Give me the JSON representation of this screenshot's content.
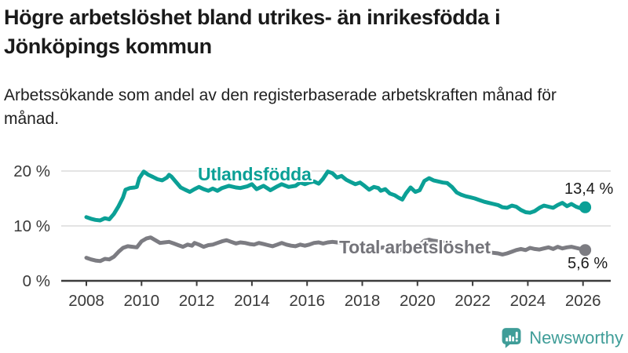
{
  "header": {
    "title": "Högre arbetslöshet bland utrikes- än inrikesfödda i Jönköpings kommun",
    "subtitle": "Arbetssökande som andel av den registerbaserade arbetskraften månad för månad."
  },
  "chart_data": {
    "type": "line",
    "title": "Högre arbetslöshet bland utrikes- än inrikesfödda i Jönköpings kommun",
    "subtitle": "Arbetssökande som andel av den registerbaserade arbetskraften månad för månad.",
    "xlabel": "",
    "ylabel": "",
    "grid": "horizontal",
    "legend_position": "inline-on-lines",
    "xlim": [
      2007.1,
      2027.0
    ],
    "ylim": [
      0,
      21.5
    ],
    "x_ticks": [
      {
        "value": 2008,
        "label": "2008"
      },
      {
        "value": 2010,
        "label": "2010"
      },
      {
        "value": 2012,
        "label": "2012"
      },
      {
        "value": 2014,
        "label": "2014"
      },
      {
        "value": 2016,
        "label": "2016"
      },
      {
        "value": 2018,
        "label": "2018"
      },
      {
        "value": 2020,
        "label": "2020"
      },
      {
        "value": 2022,
        "label": "2022"
      },
      {
        "value": 2024,
        "label": "2024"
      },
      {
        "value": 2026,
        "label": "2026"
      }
    ],
    "y_ticks": [
      {
        "value": 0,
        "label": "0 %"
      },
      {
        "value": 10,
        "label": "10 %"
      },
      {
        "value": 20,
        "label": "20 %"
      }
    ],
    "series": [
      {
        "name": "Utlandsfödda",
        "color": "#0ba096",
        "end_label": "13,4 %",
        "end_value": 13.4,
        "points": [
          [
            2008.0,
            11.6
          ],
          [
            2008.17,
            11.3
          ],
          [
            2008.33,
            11.1
          ],
          [
            2008.5,
            11.0
          ],
          [
            2008.67,
            11.4
          ],
          [
            2008.83,
            11.2
          ],
          [
            2009.0,
            12.2
          ],
          [
            2009.17,
            13.6
          ],
          [
            2009.33,
            15.2
          ],
          [
            2009.42,
            16.6
          ],
          [
            2009.58,
            16.9
          ],
          [
            2009.75,
            17.0
          ],
          [
            2009.83,
            17.1
          ],
          [
            2009.92,
            18.7
          ],
          [
            2010.08,
            19.9
          ],
          [
            2010.25,
            19.3
          ],
          [
            2010.42,
            18.9
          ],
          [
            2010.58,
            18.5
          ],
          [
            2010.75,
            18.3
          ],
          [
            2010.92,
            18.8
          ],
          [
            2011.0,
            19.3
          ],
          [
            2011.08,
            19.0
          ],
          [
            2011.25,
            18.0
          ],
          [
            2011.42,
            17.0
          ],
          [
            2011.58,
            16.6
          ],
          [
            2011.75,
            16.2
          ],
          [
            2011.92,
            16.7
          ],
          [
            2012.08,
            17.1
          ],
          [
            2012.25,
            16.7
          ],
          [
            2012.42,
            16.4
          ],
          [
            2012.58,
            16.8
          ],
          [
            2012.75,
            16.4
          ],
          [
            2012.92,
            16.9
          ],
          [
            2013.17,
            17.3
          ],
          [
            2013.42,
            17.0
          ],
          [
            2013.58,
            16.9
          ],
          [
            2013.83,
            17.2
          ],
          [
            2014.0,
            17.6
          ],
          [
            2014.17,
            16.7
          ],
          [
            2014.42,
            17.3
          ],
          [
            2014.67,
            16.5
          ],
          [
            2014.92,
            17.2
          ],
          [
            2015.08,
            17.6
          ],
          [
            2015.33,
            17.1
          ],
          [
            2015.58,
            17.3
          ],
          [
            2015.75,
            17.9
          ],
          [
            2015.92,
            17.6
          ],
          [
            2016.08,
            17.9
          ],
          [
            2016.25,
            18.1
          ],
          [
            2016.42,
            17.7
          ],
          [
            2016.58,
            18.6
          ],
          [
            2016.75,
            19.9
          ],
          [
            2016.92,
            19.6
          ],
          [
            2017.08,
            18.8
          ],
          [
            2017.25,
            19.1
          ],
          [
            2017.42,
            18.4
          ],
          [
            2017.58,
            18.0
          ],
          [
            2017.75,
            17.6
          ],
          [
            2017.92,
            17.9
          ],
          [
            2018.08,
            17.3
          ],
          [
            2018.25,
            16.6
          ],
          [
            2018.42,
            17.1
          ],
          [
            2018.58,
            16.9
          ],
          [
            2018.67,
            16.4
          ],
          [
            2018.83,
            16.7
          ],
          [
            2019.0,
            15.9
          ],
          [
            2019.17,
            15.6
          ],
          [
            2019.33,
            15.1
          ],
          [
            2019.45,
            14.8
          ],
          [
            2019.58,
            15.9
          ],
          [
            2019.75,
            17.0
          ],
          [
            2019.92,
            16.2
          ],
          [
            2020.08,
            16.5
          ],
          [
            2020.25,
            18.2
          ],
          [
            2020.42,
            18.7
          ],
          [
            2020.58,
            18.3
          ],
          [
            2020.75,
            18.1
          ],
          [
            2020.92,
            17.9
          ],
          [
            2021.08,
            17.8
          ],
          [
            2021.25,
            17.1
          ],
          [
            2021.42,
            16.1
          ],
          [
            2021.58,
            15.7
          ],
          [
            2021.75,
            15.4
          ],
          [
            2021.92,
            15.2
          ],
          [
            2022.08,
            15.0
          ],
          [
            2022.25,
            14.7
          ],
          [
            2022.42,
            14.4
          ],
          [
            2022.58,
            14.2
          ],
          [
            2022.75,
            14.0
          ],
          [
            2022.92,
            13.8
          ],
          [
            2023.08,
            13.4
          ],
          [
            2023.25,
            13.3
          ],
          [
            2023.42,
            13.7
          ],
          [
            2023.58,
            13.5
          ],
          [
            2023.75,
            12.9
          ],
          [
            2023.92,
            12.5
          ],
          [
            2024.08,
            12.4
          ],
          [
            2024.25,
            12.7
          ],
          [
            2024.42,
            13.3
          ],
          [
            2024.58,
            13.7
          ],
          [
            2024.75,
            13.5
          ],
          [
            2024.92,
            13.3
          ],
          [
            2025.08,
            13.8
          ],
          [
            2025.25,
            14.2
          ],
          [
            2025.42,
            13.6
          ],
          [
            2025.58,
            14.0
          ],
          [
            2025.75,
            13.5
          ],
          [
            2025.92,
            13.2
          ],
          [
            2026.08,
            13.4
          ]
        ]
      },
      {
        "name": "Total arbetslöshet",
        "color": "#7c7c82",
        "end_label": "5,6 %",
        "end_value": 5.6,
        "points": [
          [
            2008.0,
            4.2
          ],
          [
            2008.17,
            3.9
          ],
          [
            2008.33,
            3.7
          ],
          [
            2008.5,
            3.6
          ],
          [
            2008.67,
            4.0
          ],
          [
            2008.83,
            3.9
          ],
          [
            2009.0,
            4.4
          ],
          [
            2009.17,
            5.3
          ],
          [
            2009.33,
            6.0
          ],
          [
            2009.5,
            6.3
          ],
          [
            2009.67,
            6.2
          ],
          [
            2009.83,
            6.1
          ],
          [
            2010.0,
            7.2
          ],
          [
            2010.17,
            7.7
          ],
          [
            2010.33,
            7.9
          ],
          [
            2010.5,
            7.4
          ],
          [
            2010.67,
            6.9
          ],
          [
            2010.83,
            7.0
          ],
          [
            2011.0,
            7.1
          ],
          [
            2011.17,
            6.8
          ],
          [
            2011.33,
            6.5
          ],
          [
            2011.5,
            6.2
          ],
          [
            2011.67,
            6.6
          ],
          [
            2011.83,
            6.4
          ],
          [
            2011.92,
            6.9
          ],
          [
            2012.08,
            6.6
          ],
          [
            2012.25,
            6.2
          ],
          [
            2012.42,
            6.5
          ],
          [
            2012.58,
            6.6
          ],
          [
            2012.75,
            6.9
          ],
          [
            2012.92,
            7.2
          ],
          [
            2013.08,
            7.4
          ],
          [
            2013.25,
            7.1
          ],
          [
            2013.42,
            6.8
          ],
          [
            2013.58,
            7.0
          ],
          [
            2013.75,
            6.9
          ],
          [
            2013.92,
            6.7
          ],
          [
            2014.08,
            6.6
          ],
          [
            2014.25,
            6.9
          ],
          [
            2014.42,
            6.7
          ],
          [
            2014.58,
            6.5
          ],
          [
            2014.75,
            6.3
          ],
          [
            2014.92,
            6.6
          ],
          [
            2015.08,
            6.9
          ],
          [
            2015.25,
            6.6
          ],
          [
            2015.42,
            6.4
          ],
          [
            2015.58,
            6.3
          ],
          [
            2015.75,
            6.6
          ],
          [
            2015.92,
            6.4
          ],
          [
            2016.08,
            6.6
          ],
          [
            2016.25,
            6.9
          ],
          [
            2016.42,
            7.0
          ],
          [
            2016.58,
            6.8
          ],
          [
            2016.75,
            7.0
          ],
          [
            2016.92,
            7.1
          ],
          [
            2017.08,
            7.0
          ],
          [
            2017.25,
            6.9
          ],
          [
            2017.42,
            6.6
          ],
          [
            2017.58,
            6.8
          ],
          [
            2017.75,
            6.6
          ],
          [
            2017.92,
            6.5
          ],
          [
            2018.08,
            6.1
          ],
          [
            2018.25,
            6.3
          ],
          [
            2018.42,
            6.1
          ],
          [
            2018.58,
            5.9
          ],
          [
            2018.75,
            6.1
          ],
          [
            2018.92,
            6.0
          ],
          [
            2019.08,
            5.8
          ],
          [
            2019.25,
            5.5
          ],
          [
            2019.42,
            5.7
          ],
          [
            2019.58,
            5.9
          ],
          [
            2019.75,
            6.1
          ],
          [
            2019.92,
            6.2
          ],
          [
            2020.08,
            6.6
          ],
          [
            2020.25,
            7.3
          ],
          [
            2020.42,
            7.5
          ],
          [
            2020.58,
            7.3
          ],
          [
            2020.75,
            7.2
          ],
          [
            2020.92,
            7.0
          ],
          [
            2021.08,
            6.9
          ],
          [
            2021.25,
            6.5
          ],
          [
            2021.42,
            6.3
          ],
          [
            2021.58,
            6.1
          ],
          [
            2021.75,
            6.0
          ],
          [
            2021.92,
            5.8
          ],
          [
            2022.08,
            5.6
          ],
          [
            2022.25,
            5.5
          ],
          [
            2022.42,
            5.3
          ],
          [
            2022.58,
            5.2
          ],
          [
            2022.75,
            5.1
          ],
          [
            2022.92,
            5.0
          ],
          [
            2023.08,
            4.8
          ],
          [
            2023.25,
            5.0
          ],
          [
            2023.42,
            5.3
          ],
          [
            2023.58,
            5.6
          ],
          [
            2023.75,
            5.8
          ],
          [
            2023.92,
            5.6
          ],
          [
            2024.08,
            6.0
          ],
          [
            2024.25,
            5.8
          ],
          [
            2024.42,
            5.7
          ],
          [
            2024.58,
            5.9
          ],
          [
            2024.75,
            6.1
          ],
          [
            2024.92,
            5.8
          ],
          [
            2025.08,
            6.2
          ],
          [
            2025.25,
            5.9
          ],
          [
            2025.42,
            6.1
          ],
          [
            2025.58,
            6.2
          ],
          [
            2025.75,
            6.0
          ],
          [
            2025.92,
            5.8
          ],
          [
            2026.08,
            5.6
          ]
        ]
      }
    ],
    "colors": {
      "gridline": "#dcdcdc",
      "axis": "#3c3c3c",
      "tick_label": "#3a3a3a"
    }
  },
  "branding": {
    "logo_text": "Newsworthy",
    "color": "#3f9d98",
    "icon": "speech-bubble-bar-chart-exclamation"
  }
}
